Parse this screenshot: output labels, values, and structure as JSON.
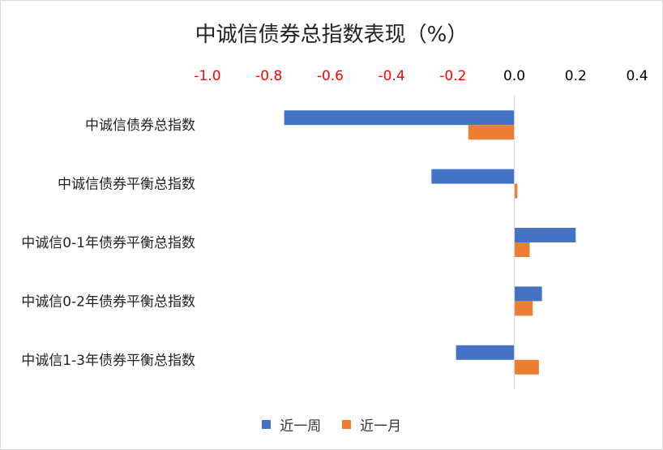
{
  "chart_data": {
    "type": "bar",
    "orientation": "horizontal",
    "title": "中诚信债券总指数表现（%）",
    "categories": [
      "中诚信债券总指数",
      "中诚信债券平衡总指数",
      "中诚信0-1年债券平衡总指数",
      "中诚信0-2年债券平衡总指数",
      "中诚信1-3年债券平衡总指数"
    ],
    "series": [
      {
        "name": "近一周",
        "color": "#4472C4",
        "values": [
          -0.75,
          -0.27,
          0.2,
          0.09,
          -0.19
        ]
      },
      {
        "name": "近一月",
        "color": "#ED7D31",
        "values": [
          -0.15,
          0.01,
          0.05,
          0.06,
          0.08
        ]
      }
    ],
    "xlim": [
      -1.0,
      0.4
    ],
    "xticks": [
      "-1.0",
      "-0.8",
      "-0.6",
      "-0.4",
      "-0.2",
      "0.0",
      "0.2",
      "0.4"
    ],
    "xtick_values": [
      -1.0,
      -0.8,
      -0.6,
      -0.4,
      -0.2,
      0.0,
      0.2,
      0.4
    ],
    "negative_tick_color": "#FF0000",
    "positive_tick_color": "#000000",
    "axis_position": "top",
    "grid": false,
    "legend_position": "bottom"
  }
}
